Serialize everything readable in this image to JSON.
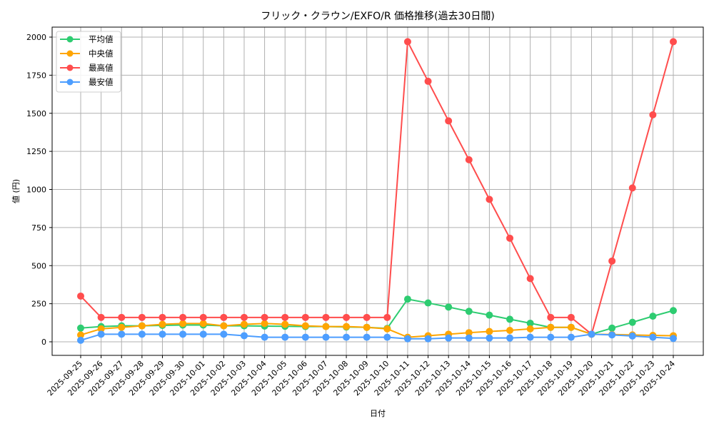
{
  "chart_data": {
    "type": "line",
    "title": "フリック・クラウン/EXFO/R 価格推移(過去30日間)",
    "xlabel": "日付",
    "ylabel": "値 (円)",
    "ylim": [
      -85,
      2060
    ],
    "yticks": [
      0,
      250,
      500,
      750,
      1000,
      1250,
      1500,
      1750,
      2000
    ],
    "grid": true,
    "legend_position": "upper left",
    "categories": [
      "2025-09-25",
      "2025-09-26",
      "2025-09-27",
      "2025-09-28",
      "2025-09-29",
      "2025-09-30",
      "2025-10-01",
      "2025-10-02",
      "2025-10-03",
      "2025-10-04",
      "2025-10-05",
      "2025-10-06",
      "2025-10-07",
      "2025-10-08",
      "2025-10-09",
      "2025-10-10",
      "2025-10-11",
      "2025-10-12",
      "2025-10-13",
      "2025-10-14",
      "2025-10-15",
      "2025-10-16",
      "2025-10-17",
      "2025-10-18",
      "2025-10-19",
      "2025-10-20",
      "2025-10-21",
      "2025-10-22",
      "2025-10-23",
      "2025-10-24"
    ],
    "series": [
      {
        "name": "平均値",
        "color": "#2ecc71",
        "values": [
          90,
          100,
          105,
          105,
          108,
          110,
          110,
          105,
          105,
          103,
          102,
          100,
          100,
          97,
          95,
          88,
          280,
          255,
          228,
          200,
          175,
          148,
          122,
          95,
          95,
          50,
          90,
          128,
          168,
          205
        ]
      },
      {
        "name": "中央値",
        "color": "#ffa500",
        "values": [
          45,
          85,
          95,
          105,
          115,
          120,
          120,
          105,
          115,
          120,
          115,
          105,
          100,
          100,
          95,
          85,
          30,
          40,
          50,
          60,
          68,
          75,
          85,
          95,
          95,
          50,
          48,
          45,
          42,
          40
        ]
      },
      {
        "name": "最高値",
        "color": "#ff4d4d",
        "values": [
          300,
          160,
          160,
          160,
          160,
          160,
          160,
          160,
          160,
          160,
          160,
          160,
          160,
          160,
          160,
          160,
          1970,
          1710,
          1450,
          1195,
          935,
          680,
          415,
          160,
          160,
          50,
          530,
          1010,
          1490,
          1970
        ]
      },
      {
        "name": "最安値",
        "color": "#4d9eff",
        "values": [
          10,
          50,
          50,
          50,
          50,
          50,
          50,
          50,
          40,
          30,
          30,
          30,
          30,
          30,
          30,
          30,
          20,
          20,
          25,
          25,
          25,
          25,
          30,
          30,
          30,
          50,
          45,
          38,
          30,
          22
        ]
      }
    ]
  }
}
